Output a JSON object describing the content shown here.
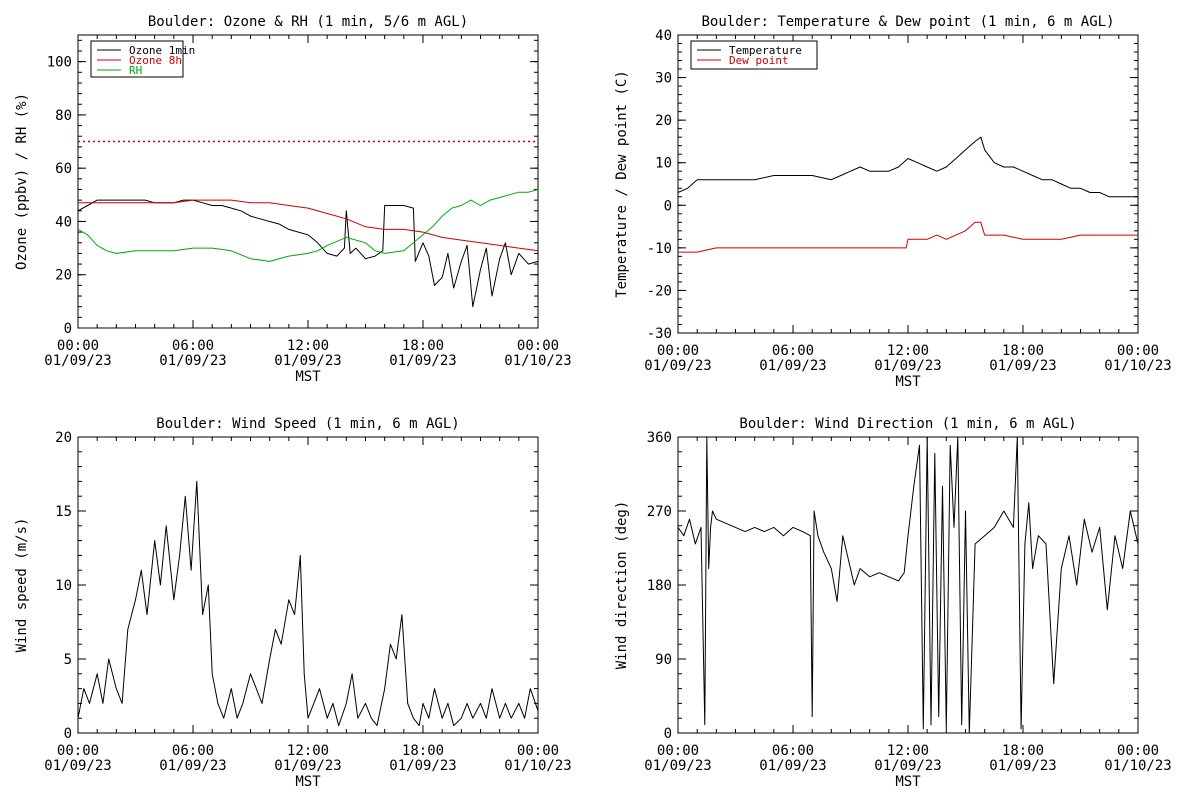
{
  "chart_data": [
    {
      "type": "line",
      "title": "Boulder: Ozone & RH (1 min, 5/6 m AGL)",
      "xlabel": "MST",
      "ylabel": "Ozone (ppbv) / RH (%)",
      "xlim": [
        "01/09/23 00:00",
        "01/10/23 00:00"
      ],
      "ylim": [
        0,
        110
      ],
      "x_ticks": [
        {
          "time": "00:00",
          "date": "01/09/23"
        },
        {
          "time": "06:00",
          "date": "01/09/23"
        },
        {
          "time": "12:00",
          "date": "01/09/23"
        },
        {
          "time": "18:00",
          "date": "01/09/23"
        },
        {
          "time": "00:00",
          "date": "01/10/23"
        }
      ],
      "y_ticks": [
        0,
        20,
        40,
        60,
        80,
        100
      ],
      "reference_lines": [
        {
          "y": 70,
          "color": "#cc0000",
          "style": "dotted"
        }
      ],
      "legend_position": "top-left",
      "grid": false,
      "series": [
        {
          "name": "Ozone 1min",
          "color": "#000000",
          "x_hours": [
            0,
            0.5,
            1,
            1.5,
            2,
            2.5,
            3,
            3.5,
            4,
            4.5,
            5,
            5.5,
            6,
            6.5,
            7,
            7.5,
            8,
            8.5,
            9,
            9.5,
            10,
            10.5,
            11,
            11.5,
            12,
            12.5,
            13,
            13.5,
            13.9,
            14,
            14.2,
            14.5,
            15,
            15.5,
            15.9,
            16,
            16.5,
            17,
            17.5,
            17.6,
            18,
            18.3,
            18.6,
            19,
            19.3,
            19.6,
            20,
            20.3,
            20.6,
            21,
            21.3,
            21.6,
            22,
            22.3,
            22.6,
            23,
            23.5,
            24
          ],
          "values": [
            44,
            46,
            48,
            48,
            48,
            48,
            48,
            48,
            47,
            47,
            47,
            48,
            48,
            47,
            46,
            46,
            45,
            44,
            42,
            41,
            40,
            39,
            37,
            36,
            35,
            32,
            28,
            27,
            30,
            44,
            28,
            30,
            26,
            27,
            29,
            46,
            46,
            46,
            45,
            25,
            32,
            27,
            16,
            19,
            28,
            15,
            25,
            31,
            8,
            22,
            30,
            12,
            26,
            32,
            20,
            28,
            24,
            25
          ]
        },
        {
          "name": "Ozone 8h",
          "color": "#cc0000",
          "x_hours": [
            0,
            1,
            2,
            3,
            4,
            5,
            6,
            7,
            8,
            9,
            10,
            11,
            12,
            13,
            14,
            15,
            16,
            17,
            18,
            19,
            20,
            21,
            22,
            23,
            24
          ],
          "values": [
            47,
            47,
            47,
            47,
            47,
            47,
            48,
            48,
            48,
            47,
            47,
            46,
            45,
            43,
            41,
            38,
            37,
            37,
            36,
            34,
            33,
            32,
            31,
            30,
            29
          ]
        },
        {
          "name": "RH",
          "color": "#00aa00",
          "x_hours": [
            0,
            0.5,
            1,
            1.5,
            2,
            3,
            4,
            5,
            6,
            7,
            8,
            9,
            10,
            11,
            12,
            12.5,
            13,
            14,
            15,
            15.5,
            16,
            17,
            17.5,
            18,
            18.5,
            19,
            19.5,
            20,
            20.5,
            21,
            21.5,
            22,
            22.5,
            23,
            23.5,
            24
          ],
          "values": [
            37,
            35,
            31,
            29,
            28,
            29,
            29,
            29,
            30,
            30,
            29,
            26,
            25,
            27,
            28,
            29,
            31,
            34,
            32,
            29,
            28,
            29,
            32,
            35,
            38,
            42,
            45,
            46,
            48,
            46,
            48,
            49,
            50,
            51,
            51,
            52
          ]
        }
      ]
    },
    {
      "type": "line",
      "title": "Boulder: Temperature & Dew point (1 min, 6 m AGL)",
      "xlabel": "MST",
      "ylabel": "Temperature / Dew point (C)",
      "xlim": [
        "01/09/23 00:00",
        "01/10/23 00:00"
      ],
      "ylim": [
        -30,
        40
      ],
      "x_ticks": [
        {
          "time": "00:00",
          "date": "01/09/23"
        },
        {
          "time": "06:00",
          "date": "01/09/23"
        },
        {
          "time": "12:00",
          "date": "01/09/23"
        },
        {
          "time": "18:00",
          "date": "01/09/23"
        },
        {
          "time": "00:00",
          "date": "01/10/23"
        }
      ],
      "y_ticks": [
        -30,
        -20,
        -10,
        0,
        10,
        20,
        30,
        40
      ],
      "legend_position": "top-left",
      "grid": false,
      "series": [
        {
          "name": "Temperature",
          "color": "#000000",
          "x_hours": [
            0,
            0.5,
            1,
            1.5,
            2,
            3,
            4,
            5,
            6,
            7,
            8,
            8.5,
            9,
            9.5,
            10,
            10.5,
            11,
            11.5,
            12,
            12.5,
            13,
            13.5,
            14,
            14.5,
            15,
            15.5,
            15.8,
            16,
            16.5,
            17,
            17.5,
            18,
            18.5,
            19,
            19.5,
            20,
            20.5,
            21,
            21.5,
            22,
            22.5,
            23,
            23.5,
            24
          ],
          "values": [
            3,
            4,
            6,
            6,
            6,
            6,
            6,
            7,
            7,
            7,
            6,
            7,
            8,
            9,
            8,
            8,
            8,
            9,
            11,
            10,
            9,
            8,
            9,
            11,
            13,
            15,
            16,
            13,
            10,
            9,
            9,
            8,
            7,
            6,
            6,
            5,
            4,
            4,
            3,
            3,
            2,
            2,
            2,
            2
          ]
        },
        {
          "name": "Dew point",
          "color": "#cc0000",
          "x_hours": [
            0,
            1,
            2,
            3,
            4,
            5,
            6,
            7,
            8,
            9,
            10,
            11,
            11.9,
            12,
            13,
            13.5,
            14,
            14.5,
            15,
            15.5,
            15.8,
            16,
            17,
            18,
            19,
            20,
            21,
            22,
            23,
            24
          ],
          "values": [
            -11,
            -11,
            -10,
            -10,
            -10,
            -10,
            -10,
            -10,
            -10,
            -10,
            -10,
            -10,
            -10,
            -8,
            -8,
            -7,
            -8,
            -7,
            -6,
            -4,
            -4,
            -7,
            -7,
            -8,
            -8,
            -8,
            -7,
            -7,
            -7,
            -7
          ]
        }
      ]
    },
    {
      "type": "line",
      "title": "Boulder: Wind Speed (1 min, 6 m AGL)",
      "xlabel": "MST",
      "ylabel": "Wind speed (m/s)",
      "xlim": [
        "01/09/23 00:00",
        "01/10/23 00:00"
      ],
      "ylim": [
        0,
        20
      ],
      "x_ticks": [
        {
          "time": "00:00",
          "date": "01/09/23"
        },
        {
          "time": "06:00",
          "date": "01/09/23"
        },
        {
          "time": "12:00",
          "date": "01/09/23"
        },
        {
          "time": "18:00",
          "date": "01/09/23"
        },
        {
          "time": "00:00",
          "date": "01/10/23"
        }
      ],
      "y_ticks": [
        0,
        5,
        10,
        15,
        20
      ],
      "grid": false,
      "series": [
        {
          "name": "",
          "color": "#000000",
          "x_hours": [
            0,
            0.3,
            0.6,
            1,
            1.3,
            1.6,
            2,
            2.3,
            2.6,
            3,
            3.3,
            3.6,
            4,
            4.3,
            4.6,
            5,
            5.3,
            5.6,
            5.9,
            6.2,
            6.5,
            6.8,
            7,
            7.3,
            7.6,
            8,
            8.3,
            8.6,
            9,
            9.3,
            9.6,
            10,
            10.3,
            10.6,
            11,
            11.3,
            11.6,
            11.8,
            12,
            12.3,
            12.6,
            13,
            13.3,
            13.6,
            14,
            14.3,
            14.6,
            15,
            15.3,
            15.6,
            16,
            16.3,
            16.6,
            16.9,
            17.2,
            17.5,
            17.8,
            18,
            18.3,
            18.6,
            19,
            19.3,
            19.6,
            20,
            20.3,
            20.6,
            21,
            21.3,
            21.6,
            22,
            22.3,
            22.6,
            23,
            23.3,
            23.6,
            24
          ],
          "values": [
            1,
            3,
            2,
            4,
            2,
            5,
            3,
            2,
            7,
            9,
            11,
            8,
            13,
            10,
            14,
            9,
            12,
            16,
            11,
            17,
            8,
            10,
            4,
            2,
            1,
            3,
            1,
            2,
            4,
            3,
            2,
            5,
            7,
            6,
            9,
            8,
            12,
            4,
            1,
            2,
            3,
            1,
            2,
            0.5,
            2,
            4,
            1,
            2,
            1,
            0.5,
            3,
            6,
            5,
            8,
            2,
            1,
            0.5,
            2,
            1,
            3,
            1,
            2,
            0.5,
            1,
            2,
            1,
            2,
            1,
            3,
            1,
            2,
            1,
            2,
            1,
            3,
            1.5
          ]
        }
      ]
    },
    {
      "type": "line",
      "title": "Boulder: Wind Direction (1 min, 6 m AGL)",
      "xlabel": "MST",
      "ylabel": "Wind direction (deg)",
      "xlim": [
        "01/09/23 00:00",
        "01/10/23 00:00"
      ],
      "ylim": [
        0,
        360
      ],
      "x_ticks": [
        {
          "time": "00:00",
          "date": "01/09/23"
        },
        {
          "time": "06:00",
          "date": "01/09/23"
        },
        {
          "time": "12:00",
          "date": "01/09/23"
        },
        {
          "time": "18:00",
          "date": "01/09/23"
        },
        {
          "time": "00:00",
          "date": "01/10/23"
        }
      ],
      "y_ticks": [
        0,
        90,
        180,
        270,
        360
      ],
      "grid": false,
      "series": [
        {
          "name": "",
          "color": "#000000",
          "x_hours": [
            0,
            0.3,
            0.6,
            0.9,
            1.2,
            1.4,
            1.5,
            1.6,
            1.7,
            1.8,
            2,
            2.5,
            3,
            3.5,
            4,
            4.5,
            5,
            5.5,
            6,
            6.5,
            6.9,
            7,
            7.1,
            7.3,
            7.6,
            8,
            8.3,
            8.6,
            9,
            9.2,
            9.5,
            10,
            10.5,
            11,
            11.5,
            11.8,
            12,
            12.3,
            12.6,
            12.8,
            13,
            13.2,
            13.4,
            13.6,
            13.8,
            14,
            14.2,
            14.4,
            14.6,
            14.8,
            15,
            15.2,
            15.5,
            16,
            16.5,
            17,
            17.5,
            17.7,
            17.9,
            18.1,
            18.3,
            18.5,
            18.8,
            19.2,
            19.6,
            20,
            20.4,
            20.8,
            21.2,
            21.6,
            22,
            22.4,
            22.8,
            23.2,
            23.6,
            24
          ],
          "values": [
            250,
            240,
            260,
            230,
            250,
            10,
            360,
            200,
            250,
            270,
            260,
            255,
            250,
            245,
            250,
            245,
            250,
            240,
            250,
            245,
            240,
            20,
            270,
            240,
            220,
            200,
            160,
            240,
            200,
            180,
            200,
            190,
            195,
            190,
            185,
            195,
            240,
            300,
            350,
            5,
            360,
            10,
            340,
            20,
            300,
            5,
            350,
            250,
            360,
            10,
            270,
            0,
            230,
            240,
            250,
            270,
            250,
            360,
            5,
            230,
            280,
            200,
            240,
            230,
            60,
            200,
            240,
            180,
            260,
            220,
            250,
            150,
            240,
            200,
            270,
            230
          ]
        }
      ]
    }
  ]
}
